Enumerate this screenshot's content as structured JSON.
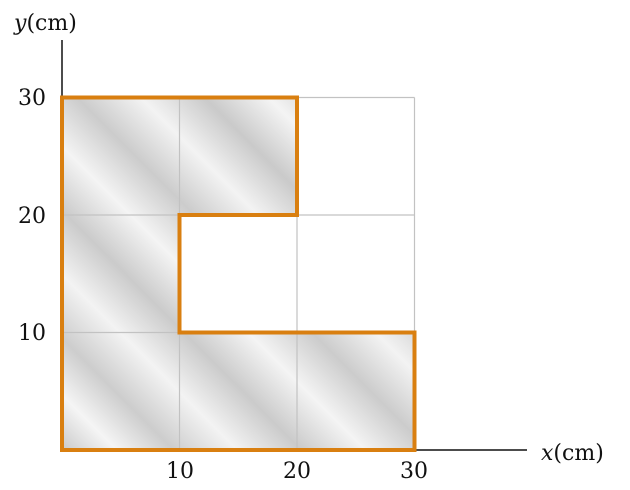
{
  "axes": {
    "y_label": {
      "var": "y",
      "unit": "(cm)"
    },
    "x_label": {
      "var": "x",
      "unit": "(cm)"
    },
    "x_ticks": [
      "10",
      "20",
      "30"
    ],
    "y_ticks": [
      "10",
      "20",
      "30"
    ]
  },
  "shape": {
    "units": "cm",
    "outline_vertices": [
      [
        0,
        0
      ],
      [
        30,
        0
      ],
      [
        30,
        10
      ],
      [
        10,
        10
      ],
      [
        10,
        20
      ],
      [
        20,
        20
      ],
      [
        20,
        30
      ],
      [
        0,
        30
      ]
    ],
    "grid_range": [
      0,
      30
    ],
    "grid_step": 10
  },
  "colors": {
    "outline": "#d97f10",
    "grid": "#c2c2c2",
    "fill_dark": "#cfcfcf",
    "fill_light": "#f4f4f4",
    "axis": "#111111"
  }
}
